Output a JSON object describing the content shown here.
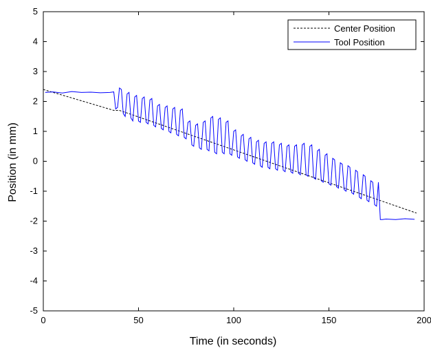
{
  "chart_data": {
    "type": "line",
    "title": "",
    "xlabel": "Time (in seconds)",
    "ylabel": "Position (in mm)",
    "xlim": [
      0,
      200
    ],
    "ylim": [
      -5,
      5
    ],
    "xticks": [
      "0",
      "50",
      "100",
      "150",
      "200"
    ],
    "yticks": [
      "5",
      "4",
      "3",
      "2",
      "1",
      "0",
      "-1",
      "-2",
      "-3",
      "-4",
      "-5"
    ],
    "grid": false,
    "legend_placement": "top-right",
    "series": [
      {
        "name": "Center Position",
        "style": "dashed",
        "color": "#000000",
        "x": [
          0,
          37,
          40,
          196
        ],
        "y": [
          2.4,
          1.7,
          1.7,
          -1.73
        ]
      },
      {
        "name": "Tool Position",
        "style": "solid",
        "color": "#0000ff",
        "x": [
          1,
          5,
          10,
          15,
          20,
          25,
          30,
          35,
          37,
          38,
          39,
          40,
          41,
          42,
          43,
          44,
          45,
          46,
          47,
          48,
          49,
          50,
          51,
          52,
          53,
          54,
          55,
          56,
          57,
          58,
          59,
          60,
          61,
          62,
          63,
          64,
          65,
          66,
          67,
          68,
          69,
          70,
          71,
          72,
          73,
          74,
          75,
          76,
          77,
          78,
          79,
          80,
          81,
          82,
          83,
          84,
          85,
          86,
          87,
          88,
          89,
          90,
          91,
          92,
          93,
          94,
          95,
          96,
          97,
          98,
          99,
          100,
          101,
          102,
          103,
          104,
          105,
          106,
          107,
          108,
          109,
          110,
          111,
          112,
          113,
          114,
          115,
          116,
          117,
          118,
          119,
          120,
          121,
          122,
          123,
          124,
          125,
          126,
          127,
          128,
          129,
          130,
          131,
          132,
          133,
          134,
          135,
          136,
          137,
          138,
          139,
          140,
          141,
          142,
          143,
          144,
          145,
          146,
          147,
          148,
          149,
          150,
          151,
          152,
          153,
          154,
          155,
          156,
          157,
          158,
          159,
          160,
          161,
          162,
          163,
          164,
          165,
          166,
          167,
          168,
          169,
          170,
          171,
          172,
          173,
          174,
          175,
          176,
          177,
          178,
          180,
          185,
          190,
          195
        ],
        "y": [
          2.3,
          2.32,
          2.28,
          2.33,
          2.3,
          2.31,
          2.29,
          2.3,
          2.32,
          1.75,
          1.8,
          2.45,
          2.4,
          1.6,
          1.5,
          2.25,
          2.3,
          1.45,
          1.35,
          2.15,
          2.2,
          1.35,
          1.3,
          2.1,
          2.15,
          1.3,
          1.25,
          2.05,
          2.1,
          1.2,
          1.15,
          1.85,
          1.9,
          1.1,
          1.05,
          1.8,
          1.85,
          1.0,
          0.95,
          1.75,
          1.8,
          0.9,
          0.85,
          1.7,
          1.75,
          0.8,
          0.75,
          1.3,
          1.35,
          0.55,
          0.5,
          1.2,
          1.25,
          0.45,
          0.4,
          1.3,
          1.35,
          0.4,
          0.35,
          1.45,
          1.5,
          0.3,
          0.25,
          1.4,
          1.45,
          0.3,
          0.25,
          1.3,
          1.35,
          0.25,
          0.2,
          1.0,
          1.05,
          0.15,
          0.1,
          0.85,
          0.9,
          0.05,
          0.0,
          0.75,
          0.8,
          -0.05,
          -0.1,
          0.65,
          0.7,
          -0.15,
          -0.2,
          0.6,
          0.65,
          -0.2,
          -0.25,
          0.6,
          0.65,
          -0.25,
          -0.3,
          0.55,
          0.6,
          -0.3,
          -0.35,
          0.5,
          0.55,
          -0.35,
          -0.4,
          0.5,
          0.55,
          -0.4,
          -0.45,
          0.55,
          0.6,
          -0.45,
          -0.5,
          0.5,
          0.55,
          -0.55,
          -0.6,
          0.35,
          0.4,
          -0.65,
          -0.7,
          0.2,
          0.25,
          -0.75,
          -0.8,
          0.1,
          0.05,
          -0.85,
          -0.9,
          -0.05,
          -0.1,
          -0.95,
          -1.0,
          -0.15,
          -0.2,
          -1.05,
          -1.1,
          -0.3,
          -0.35,
          -1.2,
          -1.25,
          -0.45,
          -0.5,
          -1.3,
          -1.35,
          -0.65,
          -0.7,
          -1.45,
          -1.5,
          -0.7,
          -1.95,
          -1.95,
          -1.93,
          -1.95,
          -1.92,
          -1.94
        ]
      }
    ]
  }
}
